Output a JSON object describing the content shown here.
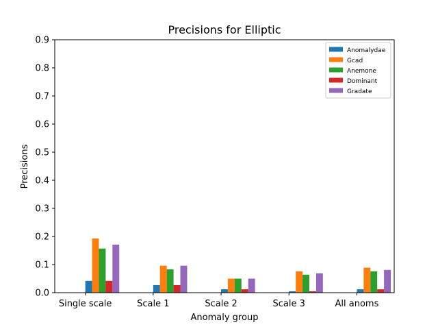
{
  "chart_data": {
    "type": "bar",
    "title": "Precisions for Elliptic",
    "xlabel": "Anomaly group",
    "ylabel": "Precisions",
    "ylim": [
      0,
      0.9
    ],
    "yticks": [
      "0.0",
      "0.1",
      "0.2",
      "0.3",
      "0.4",
      "0.5",
      "0.6",
      "0.7",
      "0.8",
      "0.9"
    ],
    "categories": [
      "Single scale",
      "Scale 1",
      "Scale 2",
      "Scale 3",
      "All anoms"
    ],
    "grid": false,
    "legend_position": "top-right",
    "series": [
      {
        "name": "Anomalydae",
        "color": "#1f77b4",
        "values": [
          0.042,
          0.027,
          0.012,
          0.005,
          0.012
        ]
      },
      {
        "name": "Gcad",
        "color": "#ff7f0e",
        "values": [
          0.193,
          0.096,
          0.05,
          0.076,
          0.089
        ]
      },
      {
        "name": "Anemone",
        "color": "#2ca02c",
        "values": [
          0.157,
          0.083,
          0.05,
          0.064,
          0.076
        ]
      },
      {
        "name": "Dominant",
        "color": "#d62728",
        "values": [
          0.042,
          0.027,
          0.012,
          0.005,
          0.012
        ]
      },
      {
        "name": "Gradate",
        "color": "#9467bd",
        "values": [
          0.171,
          0.096,
          0.05,
          0.069,
          0.081
        ]
      }
    ]
  }
}
